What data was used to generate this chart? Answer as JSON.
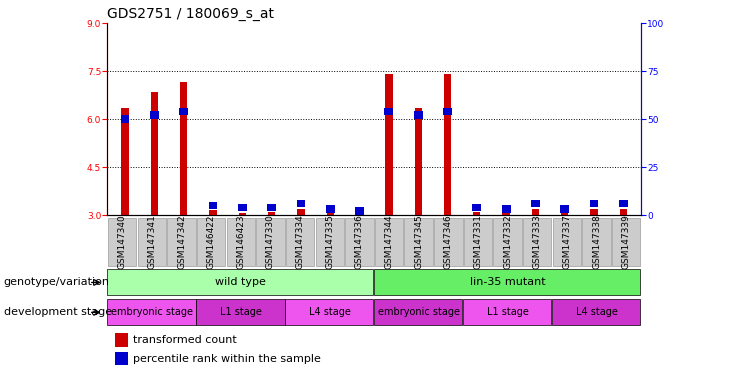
{
  "title": "GDS2751 / 180069_s_at",
  "samples": [
    "GSM147340",
    "GSM147341",
    "GSM147342",
    "GSM146422",
    "GSM146423",
    "GSM147330",
    "GSM147334",
    "GSM147335",
    "GSM147336",
    "GSM147344",
    "GSM147345",
    "GSM147346",
    "GSM147331",
    "GSM147332",
    "GSM147333",
    "GSM147337",
    "GSM147338",
    "GSM147339"
  ],
  "transformed_count": [
    6.35,
    6.85,
    7.15,
    3.15,
    3.05,
    3.1,
    3.2,
    3.05,
    3.0,
    7.4,
    6.35,
    7.4,
    3.1,
    3.05,
    3.2,
    3.05,
    3.2,
    3.2
  ],
  "percentile_rank": [
    50,
    52,
    54,
    5,
    4,
    4,
    6,
    3,
    2,
    54,
    52,
    54,
    4,
    3,
    6,
    3,
    6,
    6
  ],
  "ylim_left": [
    3,
    9
  ],
  "ylim_right": [
    0,
    100
  ],
  "yticks_left": [
    3,
    4.5,
    6,
    7.5,
    9
  ],
  "yticks_right": [
    0,
    25,
    50,
    75,
    100
  ],
  "bar_color": "#cc0000",
  "blue_color": "#0000cc",
  "genotype_groups": [
    {
      "label": "wild type",
      "start": 0,
      "end": 8,
      "color": "#aaffaa"
    },
    {
      "label": "lin-35 mutant",
      "start": 9,
      "end": 17,
      "color": "#66ee66"
    }
  ],
  "dev_groups": [
    {
      "label": "embryonic stage",
      "start": 0,
      "end": 2,
      "color": "#ee55ee"
    },
    {
      "label": "L1 stage",
      "start": 3,
      "end": 5,
      "color": "#cc33cc"
    },
    {
      "label": "L4 stage",
      "start": 6,
      "end": 8,
      "color": "#ee55ee"
    },
    {
      "label": "embryonic stage",
      "start": 9,
      "end": 11,
      "color": "#cc33cc"
    },
    {
      "label": "L1 stage",
      "start": 12,
      "end": 14,
      "color": "#ee55ee"
    },
    {
      "label": "L4 stage",
      "start": 15,
      "end": 17,
      "color": "#cc33cc"
    }
  ],
  "genotype_row_label": "genotype/variation",
  "dev_row_label": "development stage",
  "legend_items": [
    "transformed count",
    "percentile rank within the sample"
  ],
  "title_fontsize": 10,
  "tick_fontsize": 6.5,
  "label_fontsize": 8,
  "small_fontsize": 7
}
